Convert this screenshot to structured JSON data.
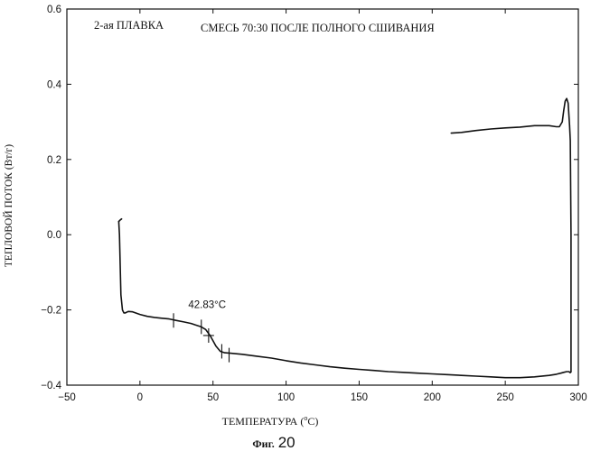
{
  "chart_data": {
    "type": "line",
    "title_left": "2-ая ПЛАВКА",
    "title_right": "СМЕСЬ 70:30 ПОСЛЕ ПОЛНОГО СШИВАНИЯ",
    "xlabel_main": "ТЕМПЕРАТУРА (",
    "xlabel_deg": "o",
    "xlabel_unit": "C)",
    "ylabel": "ТЕПЛОВОЙ ПОТОК (Вт/г)",
    "xlim": [
      -50,
      300
    ],
    "ylim": [
      -0.4,
      0.6
    ],
    "xticks": [
      -50,
      0,
      50,
      100,
      150,
      200,
      250,
      300
    ],
    "xtick_labels": [
      "−50",
      "0",
      "50",
      "100",
      "150",
      "200",
      "250",
      "300"
    ],
    "yticks": [
      -0.4,
      -0.2,
      0.0,
      0.2,
      0.4,
      0.6
    ],
    "ytick_labels": [
      "−0.4",
      "−0.2",
      "0.0",
      "0.2",
      "0.4",
      "0.6"
    ],
    "grid": false,
    "annotation": {
      "text": "42.83°C",
      "x": 46,
      "y": -0.195
    },
    "glass_transition": {
      "temperature": 42.83
    },
    "tangent_marks": [
      {
        "x": 23,
        "y": -0.228
      },
      {
        "x": 42,
        "y": -0.245
      },
      {
        "x": 47,
        "y": -0.268
      },
      {
        "x": 56,
        "y": -0.31
      },
      {
        "x": 61,
        "y": -0.32
      }
    ],
    "series": [
      {
        "color": "#111111",
        "x": [
          -14.5,
          -14.0,
          -13.5,
          -13.0,
          -12.0,
          -11.0,
          -10.0,
          -8.0,
          -5.0,
          0,
          5,
          10,
          15,
          20,
          25,
          30,
          35,
          38,
          42,
          45,
          48,
          50,
          52,
          55,
          58,
          62,
          70,
          80,
          90,
          100,
          110,
          120,
          130,
          140,
          150,
          160,
          170,
          180,
          190,
          200,
          210,
          220,
          230,
          240,
          250,
          260,
          270,
          280,
          285,
          288,
          290,
          292,
          293.5,
          294.5,
          294.5
        ],
        "y": [
          0.035,
          0.0,
          -0.08,
          -0.16,
          -0.2,
          -0.208,
          -0.208,
          -0.204,
          -0.205,
          -0.212,
          -0.217,
          -0.22,
          -0.222,
          -0.224,
          -0.228,
          -0.232,
          -0.236,
          -0.24,
          -0.245,
          -0.252,
          -0.268,
          -0.282,
          -0.296,
          -0.31,
          -0.314,
          -0.315,
          -0.318,
          -0.323,
          -0.328,
          -0.335,
          -0.341,
          -0.346,
          -0.351,
          -0.355,
          -0.358,
          -0.361,
          -0.364,
          -0.366,
          -0.368,
          -0.37,
          -0.372,
          -0.374,
          -0.376,
          -0.378,
          -0.38,
          -0.38,
          -0.378,
          -0.374,
          -0.371,
          -0.368,
          -0.366,
          -0.364,
          -0.364,
          -0.367,
          -0.365
        ]
      },
      {
        "color": "#111111",
        "x": [
          -14.5,
          -13.5,
          -12.5
        ],
        "y": [
          0.035,
          0.039,
          0.042
        ]
      },
      {
        "color": "#111111",
        "x": [
          295.0,
          295.0,
          294.5,
          294.0
        ],
        "y": [
          -0.365,
          0.0,
          0.25,
          0.29
        ]
      },
      {
        "color": "#111111",
        "x": [
          213,
          220,
          230,
          240,
          250,
          260,
          270,
          280,
          285,
          287,
          289,
          290,
          291,
          292,
          293,
          294
        ],
        "y": [
          0.27,
          0.272,
          0.277,
          0.281,
          0.284,
          0.286,
          0.29,
          0.29,
          0.287,
          0.287,
          0.3,
          0.33,
          0.355,
          0.362,
          0.35,
          0.29
        ]
      }
    ]
  },
  "caption": {
    "prefix": "Фиг.",
    "number": "20"
  }
}
